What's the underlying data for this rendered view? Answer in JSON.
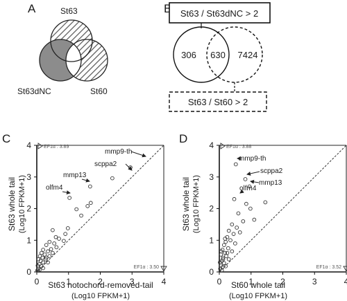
{
  "panel_labels": {
    "a": "A",
    "b": "B",
    "c": "C",
    "d": "D"
  },
  "venn_a": {
    "top": "St63",
    "left": "St63dNC",
    "right": "St60"
  },
  "venn_b": {
    "box_top": "St63 / St63dNC > 2",
    "box_bottom": "St63 / St60 > 2",
    "left_count": "306",
    "overlap_count": "630",
    "right_count": "7424"
  },
  "chart_data": [
    {
      "type": "scatter",
      "panel": "C",
      "ylabel_line1": "St63 whole tail",
      "ylabel_line2": "(Log10 FPKM+1)",
      "xlabel_line1": "St63 notochord-removed-tail",
      "xlabel_line2": "(Log10 FPKM+1)",
      "xlim": [
        0,
        4
      ],
      "ylim": [
        0,
        4
      ],
      "xticks": [
        "0",
        "1",
        "2",
        "3",
        "4"
      ],
      "yticks": [
        "0",
        "1",
        "2",
        "3",
        "4"
      ],
      "diagonal": true,
      "ef1a_top": "EF1α : 3.89",
      "ef1a_right": "EF1α : 3.50",
      "annotations": [
        "mmp9-th",
        "scppa2",
        "mmp13",
        "olfm4"
      ],
      "points": [
        [
          2.95,
          3.3
        ],
        [
          2.38,
          2.96
        ],
        [
          1.68,
          2.7
        ],
        [
          1.03,
          2.34
        ],
        [
          1.6,
          2.08
        ],
        [
          1.7,
          2.18
        ],
        [
          1.25,
          1.98
        ],
        [
          1.4,
          1.78
        ],
        [
          0.5,
          1.32
        ],
        [
          0.98,
          1.38
        ],
        [
          0.6,
          1.1
        ],
        [
          0.9,
          1.2
        ],
        [
          0.7,
          1.05
        ],
        [
          0.85,
          0.98
        ],
        [
          0.4,
          0.95
        ],
        [
          0.55,
          0.9
        ],
        [
          0.3,
          0.85
        ],
        [
          0.45,
          0.72
        ],
        [
          0.62,
          0.78
        ],
        [
          0.35,
          0.65
        ],
        [
          0.2,
          0.7
        ],
        [
          0.25,
          0.55
        ],
        [
          0.15,
          0.6
        ],
        [
          0.1,
          0.5
        ],
        [
          0.3,
          0.45
        ],
        [
          0.05,
          0.4
        ],
        [
          0.12,
          0.35
        ],
        [
          0.2,
          0.3
        ],
        [
          0.08,
          0.25
        ],
        [
          0.03,
          0.2
        ],
        [
          0.15,
          0.18
        ],
        [
          0.05,
          0.1
        ],
        [
          0.1,
          0.08
        ],
        [
          0.02,
          0.05
        ],
        [
          0.2,
          0.12
        ],
        [
          0.35,
          0.3
        ],
        [
          0.4,
          0.5
        ],
        [
          0.5,
          0.6
        ],
        [
          0.28,
          0.4
        ],
        [
          0.18,
          0.45
        ]
      ]
    },
    {
      "type": "scatter",
      "panel": "D",
      "ylabel_line1": "St63 whole tail",
      "ylabel_line2": "(Log10 FPKM+1)",
      "xlabel_line1": "St60 whole tail",
      "xlabel_line2": "(Log10 FPKM+1)",
      "xlim": [
        0,
        4
      ],
      "ylim": [
        0,
        4
      ],
      "xticks": [
        "0",
        "1",
        "2",
        "3",
        "4"
      ],
      "yticks": [
        "0",
        "1",
        "2",
        "3",
        "4"
      ],
      "diagonal": true,
      "ef1a_top": "EF1α : 3.88",
      "ef1a_right": "EF1α : 3.52",
      "annotations": [
        "mmp9-th",
        "scppa2",
        "mmp13",
        "olfm4"
      ],
      "points": [
        [
          0.52,
          3.4
        ],
        [
          0.82,
          2.93
        ],
        [
          0.95,
          2.7
        ],
        [
          0.47,
          2.3
        ],
        [
          1.45,
          2.2
        ],
        [
          0.98,
          2.0
        ],
        [
          0.85,
          2.15
        ],
        [
          0.6,
          1.85
        ],
        [
          0.75,
          1.6
        ],
        [
          1.1,
          1.65
        ],
        [
          0.4,
          1.5
        ],
        [
          0.55,
          1.4
        ],
        [
          0.3,
          1.3
        ],
        [
          0.45,
          1.2
        ],
        [
          0.65,
          1.25
        ],
        [
          0.25,
          1.1
        ],
        [
          0.35,
          1.0
        ],
        [
          0.2,
          0.95
        ],
        [
          0.5,
          0.9
        ],
        [
          0.15,
          0.85
        ],
        [
          0.28,
          0.75
        ],
        [
          0.1,
          0.7
        ],
        [
          0.4,
          0.65
        ],
        [
          0.18,
          0.6
        ],
        [
          0.05,
          0.55
        ],
        [
          0.22,
          0.5
        ],
        [
          0.12,
          0.45
        ],
        [
          0.3,
          0.4
        ],
        [
          0.08,
          0.35
        ],
        [
          0.02,
          0.3
        ],
        [
          0.15,
          0.28
        ],
        [
          0.05,
          0.2
        ],
        [
          0.1,
          0.15
        ],
        [
          0.2,
          0.18
        ],
        [
          0.03,
          0.1
        ],
        [
          0.08,
          0.05
        ],
        [
          0.12,
          0.4
        ],
        [
          0.25,
          0.6
        ],
        [
          0.06,
          0.65
        ],
        [
          0.18,
          1.05
        ]
      ]
    }
  ]
}
